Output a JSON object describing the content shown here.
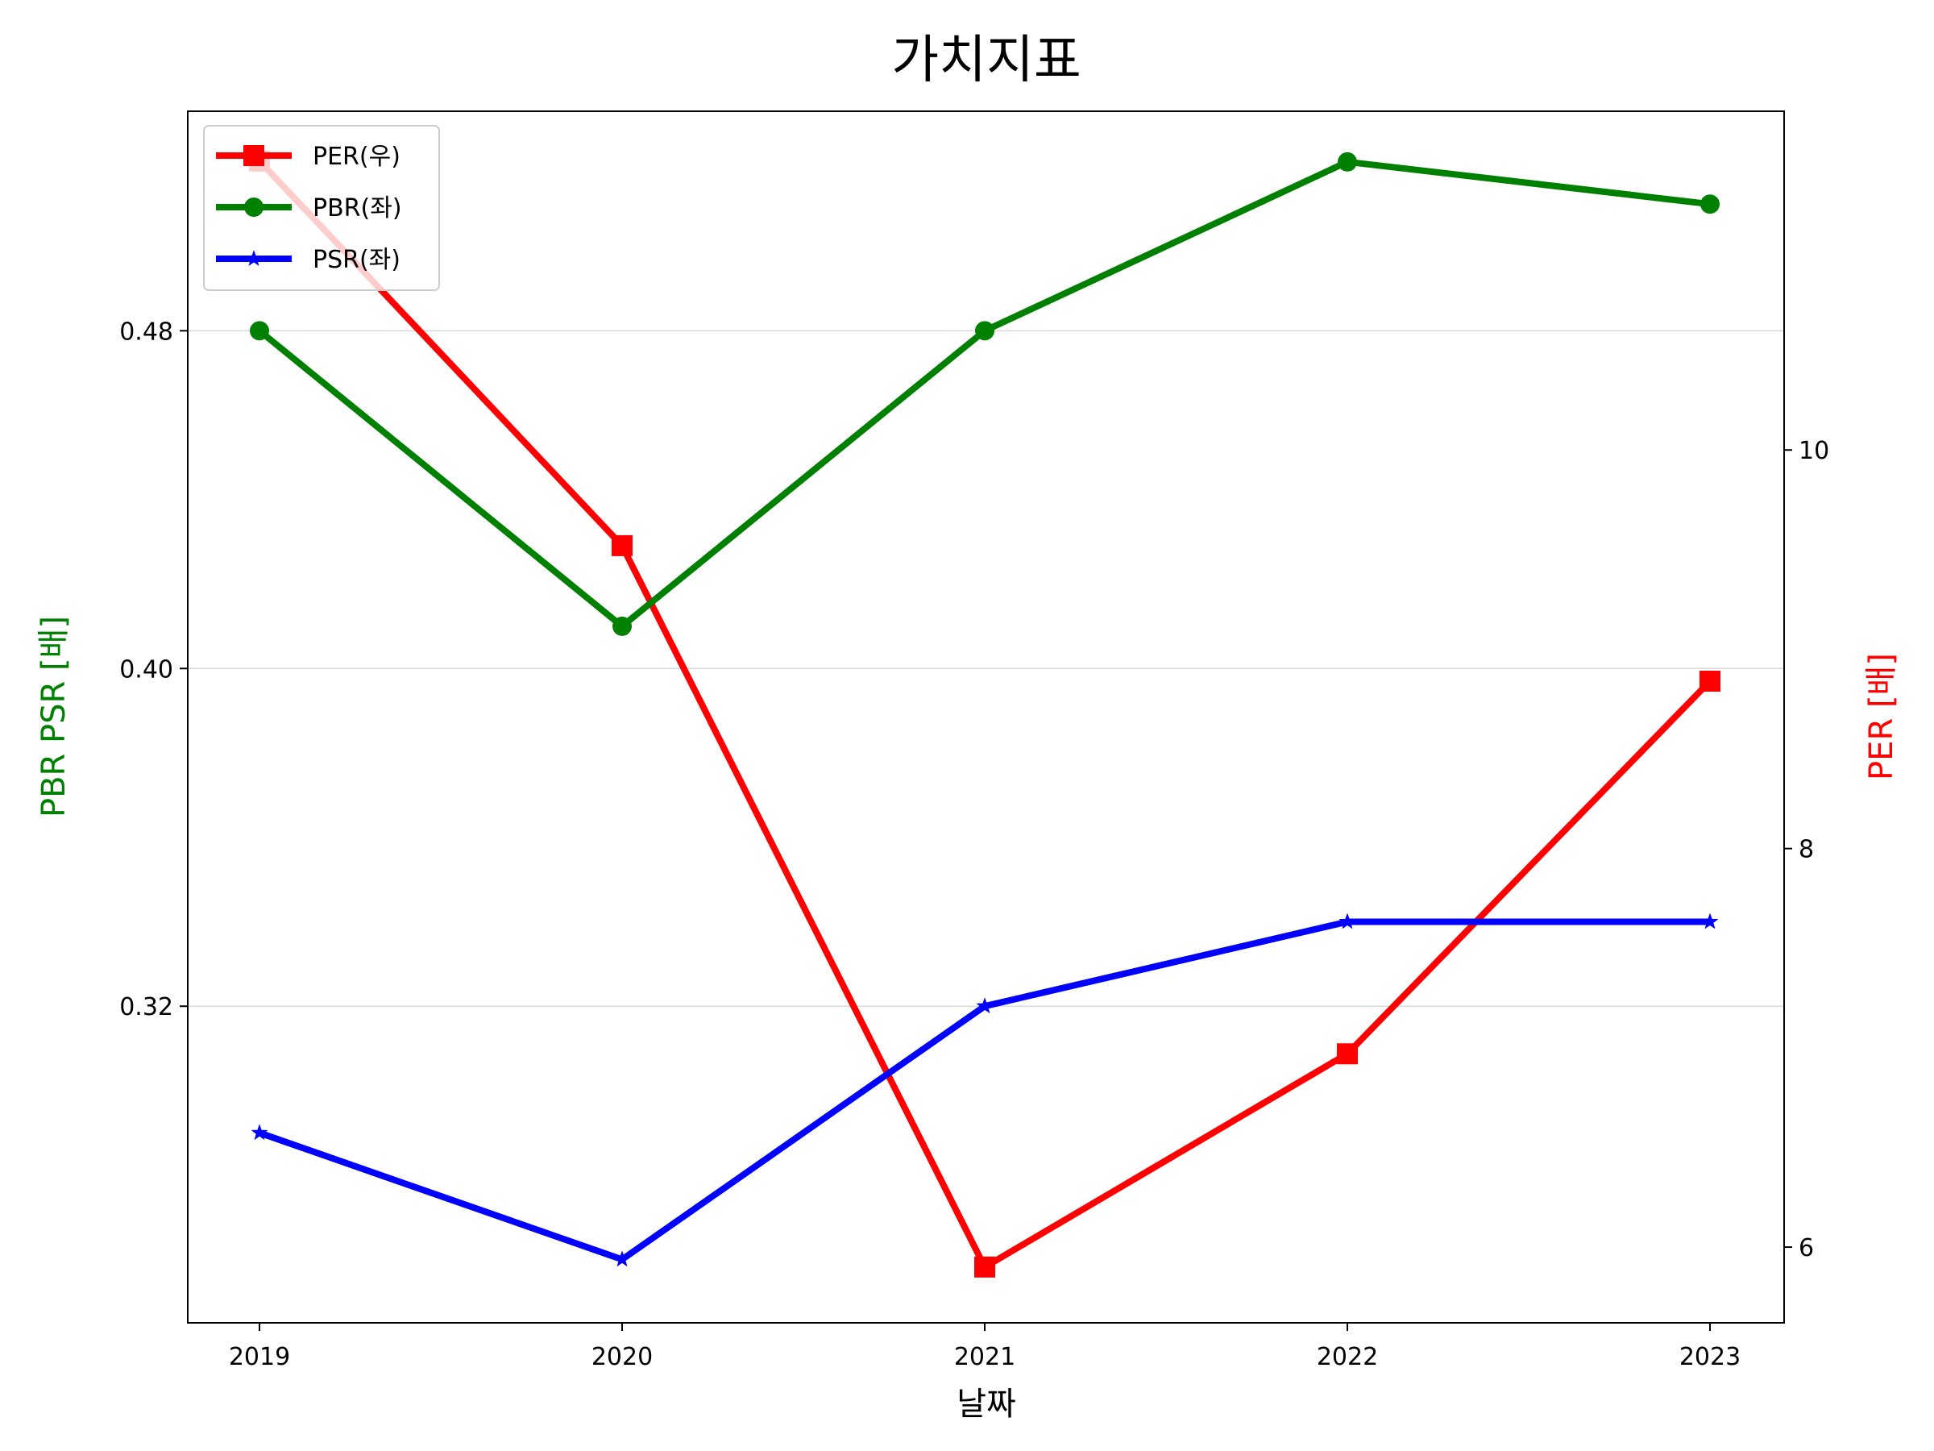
{
  "chart_data": {
    "type": "line",
    "title": "가치지표",
    "xlabel": "날짜",
    "ylabel_left": "PBR PSR [배]",
    "ylabel_right": "PER [배]",
    "categories": [
      "2019",
      "2020",
      "2021",
      "2022",
      "2023"
    ],
    "left_axis": {
      "ylim": [
        0.245,
        0.532
      ],
      "ticks": [
        0.32,
        0.4,
        0.48
      ],
      "tick_labels": [
        "0.32",
        "0.40",
        "0.48"
      ],
      "color": "#008000"
    },
    "right_axis": {
      "ylim": [
        5.62,
        11.7
      ],
      "ticks": [
        6,
        8,
        10
      ],
      "tick_labels": [
        "6",
        "8",
        "10"
      ],
      "color": "#ff0000"
    },
    "series": [
      {
        "name": "PER(우)",
        "axis": "right",
        "color": "#ff0000",
        "marker": "square",
        "values": [
          11.45,
          9.52,
          5.9,
          6.97,
          8.84
        ]
      },
      {
        "name": "PBR(좌)",
        "axis": "left",
        "color": "#008000",
        "marker": "circle",
        "values": [
          0.48,
          0.41,
          0.48,
          0.52,
          0.51
        ]
      },
      {
        "name": "PSR(좌)",
        "axis": "left",
        "color": "#0000ff",
        "marker": "star",
        "values": [
          0.29,
          0.26,
          0.32,
          0.34,
          0.34
        ]
      }
    ],
    "grid": "horizontal (left axis)",
    "legend_position": "upper left"
  }
}
